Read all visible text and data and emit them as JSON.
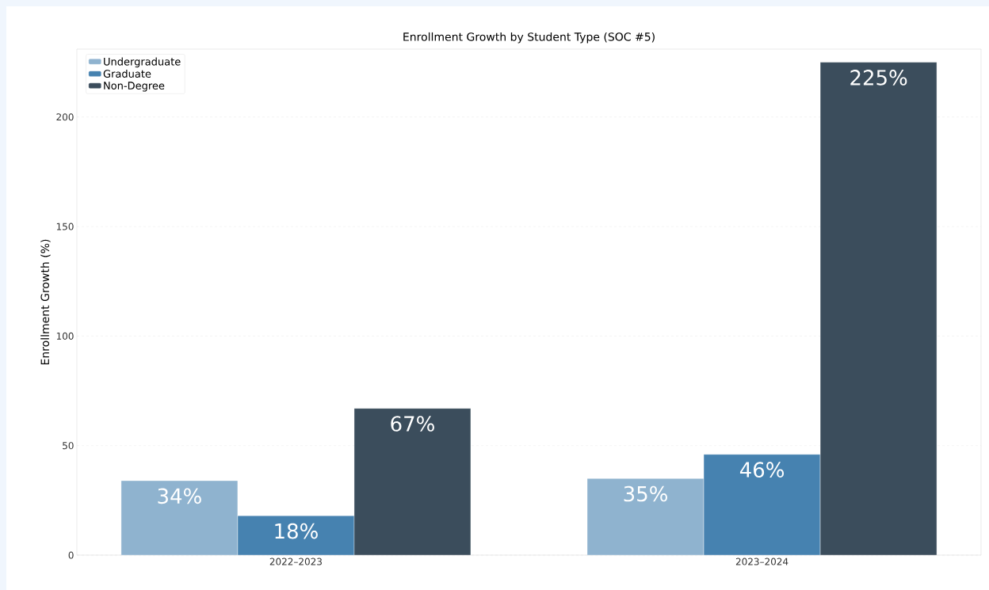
{
  "chart_data": {
    "type": "bar",
    "title": "Enrollment Growth by Student Type (SOC #5)",
    "ylabel": "Enrollment Growth (%)",
    "categories": [
      "2022–2023",
      "2023–2024"
    ],
    "series": [
      {
        "name": "Undergraduate",
        "color": "#8fb3cf",
        "values": [
          34,
          35
        ],
        "value_labels": [
          "34%",
          "35%"
        ]
      },
      {
        "name": "Graduate",
        "color": "#4682b0",
        "values": [
          18,
          46
        ],
        "value_labels": [
          "18%",
          "46%"
        ]
      },
      {
        "name": "Non-Degree",
        "color": "#3b4d5c",
        "values": [
          67,
          225
        ],
        "value_labels": [
          "67%",
          "225%"
        ]
      }
    ],
    "ylim": [
      0,
      231
    ],
    "yticks": [
      0,
      50,
      100,
      150,
      200
    ],
    "grid": "y",
    "legend": "top left"
  }
}
